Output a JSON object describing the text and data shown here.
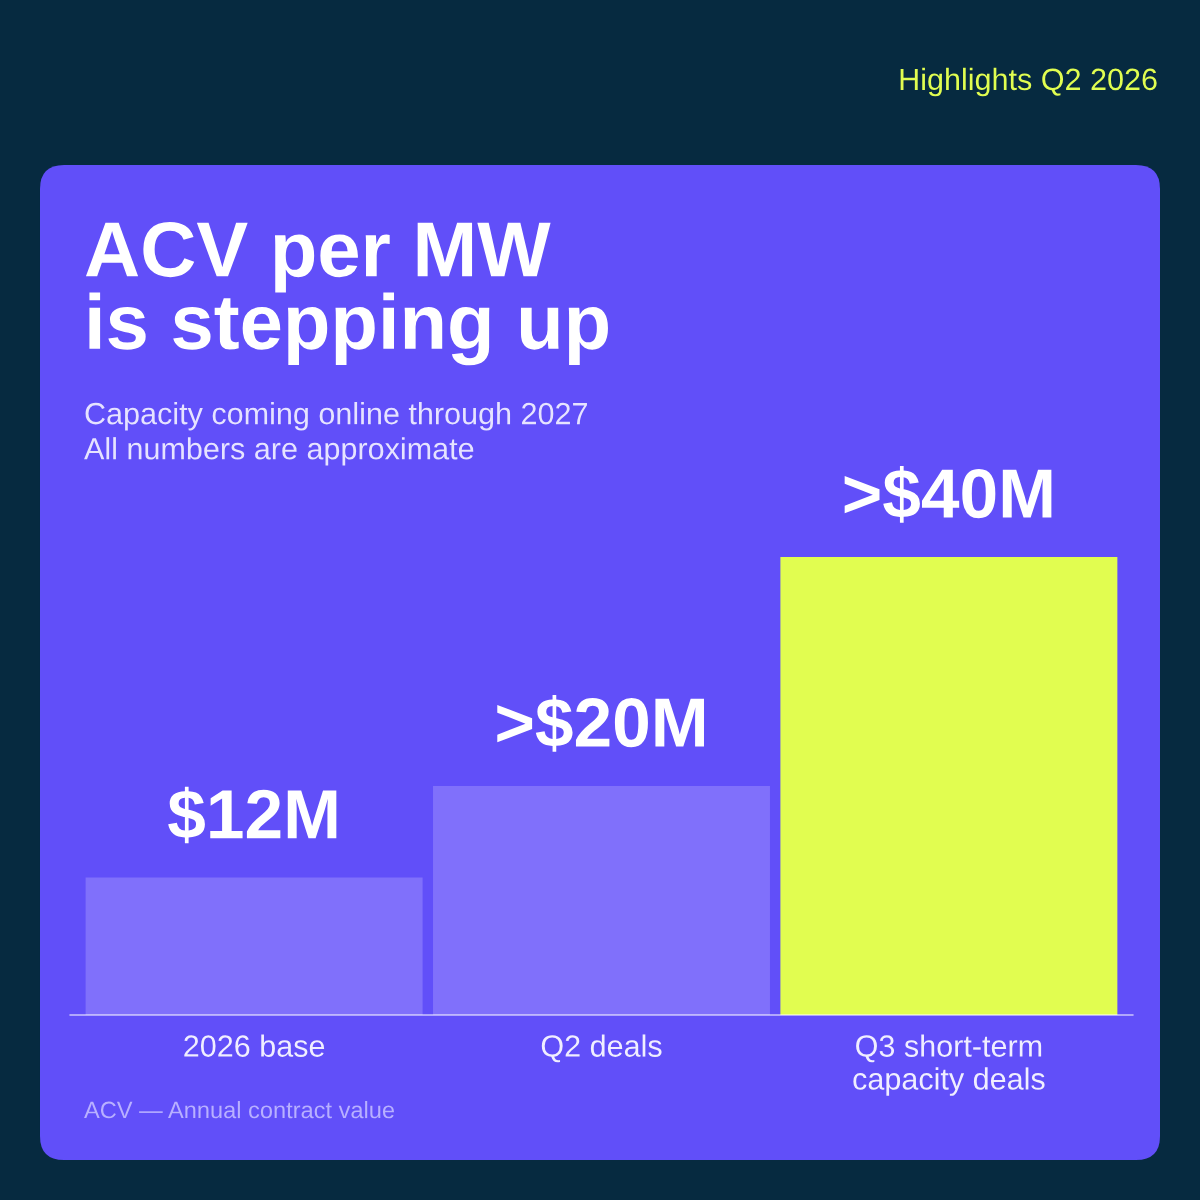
{
  "chart_data": {
    "type": "bar",
    "title": "ACV per MW\nis stepping up",
    "subtitle": "Capacity coming online through 2027\nAll numbers are approximate",
    "categories": [
      "2026 base",
      "Q2 deals",
      "Q3 short-term\ncapacity deals"
    ],
    "values": [
      12,
      20,
      40
    ],
    "colors": [
      "#8070fb",
      "#8070fb",
      "#e1fd50"
    ],
    "value_labels": [
      "$12M",
      ">$20M",
      ">$40M"
    ],
    "annotations": [
      "Highlights Q2 2026",
      "ACV — Annual contract value"
    ],
    "grid": false,
    "legend": false
  }
}
